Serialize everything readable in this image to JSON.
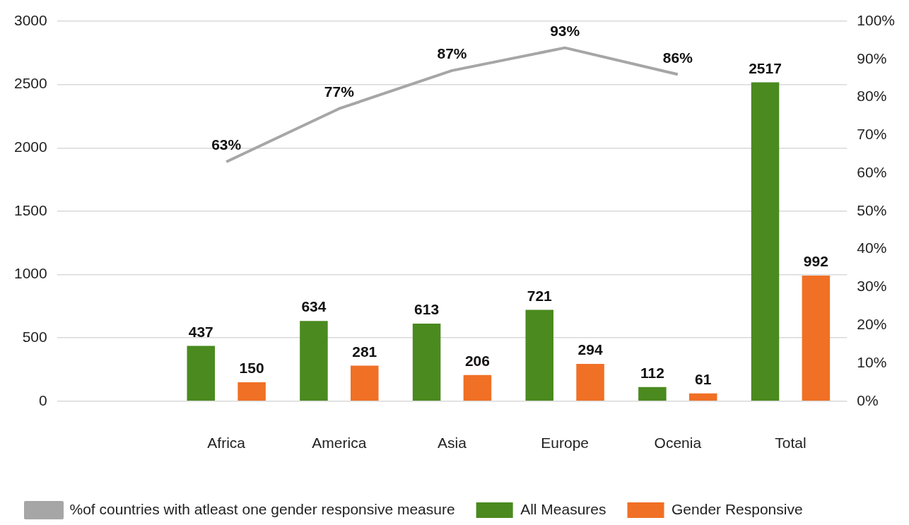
{
  "chart_data": {
    "type": "bar",
    "categories": [
      null,
      "Africa",
      "America",
      "Asia",
      "Europe",
      "Ocenia",
      "Total"
    ],
    "series": [
      {
        "name": "All Measures",
        "color": "#4a8a1f",
        "values": [
          null,
          437,
          634,
          613,
          721,
          112,
          2517
        ],
        "value_labels": [
          null,
          "437",
          "634",
          "613",
          "721",
          "112",
          "2517"
        ]
      },
      {
        "name": "Gender Responsive",
        "color": "#f07025",
        "values": [
          null,
          150,
          281,
          206,
          294,
          61,
          992
        ],
        "value_labels": [
          null,
          "150",
          "281",
          "206",
          "294",
          "61",
          "992"
        ]
      },
      {
        "name": "%of countries with atleast one gender responsive measure",
        "type": "line",
        "axis": "y2",
        "color": "#a6a6a6",
        "values": [
          null,
          63,
          77,
          87,
          93,
          86,
          null
        ],
        "value_labels": [
          null,
          "63%",
          "77%",
          "87%",
          "93%",
          "86%",
          null
        ]
      }
    ],
    "ylim": [
      0,
      3000
    ],
    "yticks": [
      0,
      500,
      1000,
      1500,
      2000,
      2500,
      3000
    ],
    "y2lim": [
      0,
      100
    ],
    "y2ticks": [
      {
        "value": 0,
        "label": "0%"
      },
      {
        "value": 10,
        "label": "10%"
      },
      {
        "value": 20,
        "label": "20%"
      },
      {
        "value": 30,
        "label": "30%"
      },
      {
        "value": 40,
        "label": "40%"
      },
      {
        "value": 50,
        "label": "50%"
      },
      {
        "value": 60,
        "label": "60%"
      },
      {
        "value": 70,
        "label": "70%"
      },
      {
        "value": 80,
        "label": "80%"
      },
      {
        "value": 90,
        "label": "90%"
      },
      {
        "value": 100,
        "label": "100%"
      }
    ],
    "grid": "y",
    "legend": "bottom",
    "marker": "none"
  }
}
